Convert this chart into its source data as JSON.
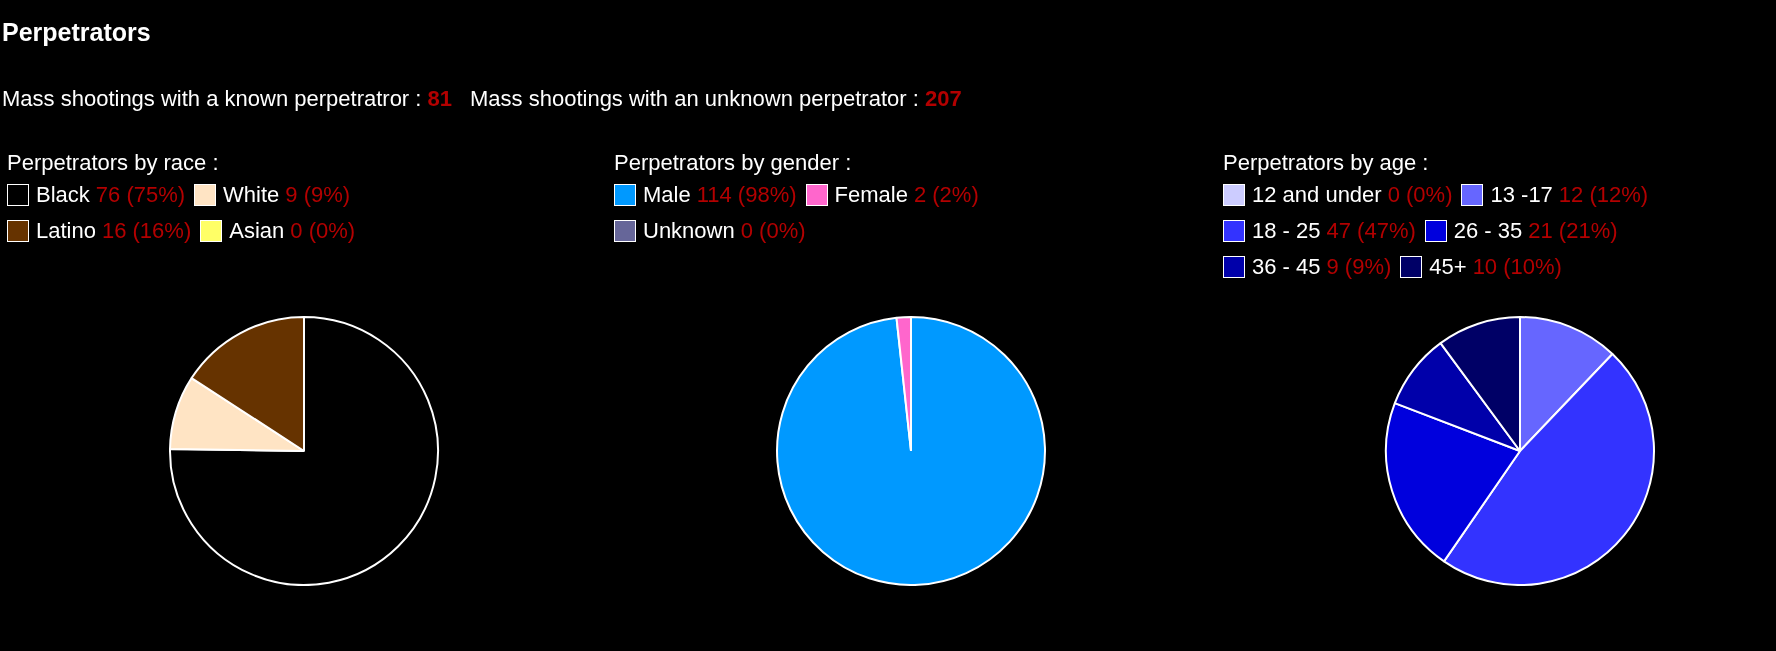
{
  "chart_data": [
    {
      "type": "other",
      "title": "Perpetrators",
      "annotations": [
        "Mass shootings with a known perpetratror : 81",
        "Mass shootings with an unknown perpetrator : 207"
      ]
    },
    {
      "type": "pie",
      "title": "Perpetrators by race :",
      "legend": "top",
      "categories": [
        "Black",
        "White",
        "Latino",
        "Asian"
      ],
      "values": [
        76,
        9,
        16,
        0
      ],
      "colors": [
        "#000000",
        "#ffe4c4",
        "#663300",
        "#ffff66"
      ],
      "value_labels": [
        "76 (75%)",
        "9 (9%)",
        "16 (16%)",
        "0 (0%)"
      ]
    },
    {
      "type": "pie",
      "title": "Perpetrators by gender :",
      "legend": "top",
      "categories": [
        "Male",
        "Female",
        "Unknown"
      ],
      "values": [
        114,
        2,
        0
      ],
      "colors": [
        "#0099ff",
        "#ff66cc",
        "#666699"
      ],
      "value_labels": [
        "114 (98%)",
        "2 (2%)",
        "0 (0%)"
      ]
    },
    {
      "type": "pie",
      "title": "Perpetrators by age :",
      "legend": "top",
      "categories": [
        "12 and under",
        "13 -17",
        "18 - 25",
        "26 - 35",
        "36 - 45",
        "45+"
      ],
      "values": [
        0,
        12,
        47,
        21,
        9,
        10
      ],
      "colors": [
        "#ccccff",
        "#6666ff",
        "#3333ff",
        "#0000dd",
        "#0000aa",
        "#000066"
      ],
      "value_labels": [
        "0 (0%)",
        "12 (12%)",
        "47 (47%)",
        "21 (21%)",
        "9 (9%)",
        "10 (10%)"
      ]
    }
  ]
}
